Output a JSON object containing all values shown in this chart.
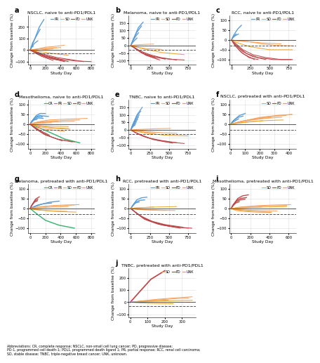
{
  "panels": [
    {
      "label": "a",
      "title": "NSCLC, naive to anti-PD1/PDL1",
      "xlim": [
        -30,
        850
      ],
      "ylim": [
        -125,
        300
      ],
      "yticks": [
        -100,
        0,
        100,
        200
      ],
      "xticks": [
        0,
        200,
        400,
        600,
        800
      ],
      "legend": [
        "PR",
        "SD",
        "PD",
        "UNK"
      ]
    },
    {
      "label": "b",
      "title": "Melanoma, naive to anti-PD1/PDL1",
      "xlim": [
        -30,
        850
      ],
      "ylim": [
        -125,
        200
      ],
      "yticks": [
        -100,
        -50,
        0,
        50,
        100,
        150
      ],
      "xticks": [
        0,
        250,
        500,
        750
      ],
      "legend": [
        "PR",
        "SD",
        "PD",
        "UNK"
      ]
    },
    {
      "label": "c",
      "title": "RCC, naive to anti-PD1/PDL1",
      "xlim": [
        -30,
        850
      ],
      "ylim": [
        -125,
        125
      ],
      "yticks": [
        -100,
        -50,
        0,
        50,
        100
      ],
      "xticks": [
        0,
        250,
        500,
        750
      ],
      "legend": [
        "PR",
        "SD",
        "PD",
        "UNK"
      ]
    },
    {
      "label": "d",
      "title": "Mesothelioma, naive to anti-PD1/PDL1",
      "xlim": [
        -30,
        850
      ],
      "ylim": [
        -125,
        125
      ],
      "yticks": [
        -100,
        -50,
        0,
        50,
        100
      ],
      "xticks": [
        0,
        200,
        400,
        600,
        800
      ],
      "legend": [
        "CR",
        "PR",
        "SD",
        "PD",
        "UNK"
      ]
    },
    {
      "label": "e",
      "title": "TNBC, naive to anti-PD1/PDL1",
      "xlim": [
        -30,
        850
      ],
      "ylim": [
        -125,
        200
      ],
      "yticks": [
        -100,
        -50,
        0,
        50,
        100,
        150
      ],
      "xticks": [
        0,
        250,
        500,
        750
      ],
      "legend": [
        "PR",
        "SD",
        "PD",
        "UNK"
      ]
    },
    {
      "label": "f",
      "title": "NSCLC, pretreated with anti-PD1/PDL1",
      "xlim": [
        -10,
        450
      ],
      "ylim": [
        -125,
        125
      ],
      "yticks": [
        -100,
        -50,
        0,
        50,
        100
      ],
      "xticks": [
        0,
        100,
        200,
        300,
        400
      ],
      "legend": [
        "SD",
        "PD",
        "UNK"
      ]
    },
    {
      "label": "g",
      "title": "Melanoma, pretreated with anti-PD1/PDL1",
      "xlim": [
        -30,
        850
      ],
      "ylim": [
        -125,
        125
      ],
      "yticks": [
        -100,
        -50,
        0,
        50,
        100
      ],
      "xticks": [
        0,
        200,
        400,
        600,
        800
      ],
      "legend": [
        "CR",
        "PR",
        "SD",
        "PD",
        "UNK"
      ]
    },
    {
      "label": "h",
      "title": "RCC, pretreated with anti-PD1/PDL1",
      "xlim": [
        -30,
        850
      ],
      "ylim": [
        -125,
        125
      ],
      "yticks": [
        -100,
        -50,
        0,
        50,
        100
      ],
      "xticks": [
        0,
        250,
        500,
        750
      ],
      "legend": [
        "PR",
        "SD",
        "PD",
        "UNK"
      ]
    },
    {
      "label": "i",
      "title": "Mesothelioma, pretreated with anti-PD1/PDL1",
      "xlim": [
        -20,
        680
      ],
      "ylim": [
        -125,
        125
      ],
      "yticks": [
        -100,
        -50,
        0,
        50,
        100
      ],
      "xticks": [
        0,
        200,
        400,
        600
      ],
      "legend": [
        "SD",
        "PD",
        "UNK"
      ]
    },
    {
      "label": "j",
      "title": "TNBC, pretreated with anti-PD1/PDL1",
      "xlim": [
        -10,
        380
      ],
      "ylim": [
        -125,
        280
      ],
      "yticks": [
        -100,
        0,
        100,
        200
      ],
      "xticks": [
        0,
        100,
        200,
        300
      ],
      "legend": [
        "SD",
        "PD",
        "UNK"
      ]
    }
  ],
  "colors": {
    "CR": "#3cb371",
    "PR": "#5b9bd5",
    "SD": "#f4a460",
    "PD": "#bc4749",
    "UNK": "#e8a838"
  },
  "ylabel": "Change from baseline (%)",
  "xlabel": "Study Day",
  "footnote": "Abbreviations: CR, complete response; NSCLC, non-small cell lung cancer; PD, progressive disease;\nPD-1, programmed cell death-1; PDL1, programmed death ligand 1; PR, partial response; RCC, renal cell carcinoma;\nSD, stable disease; TNBC, triple-negative breast cancer; UNK, unknown."
}
